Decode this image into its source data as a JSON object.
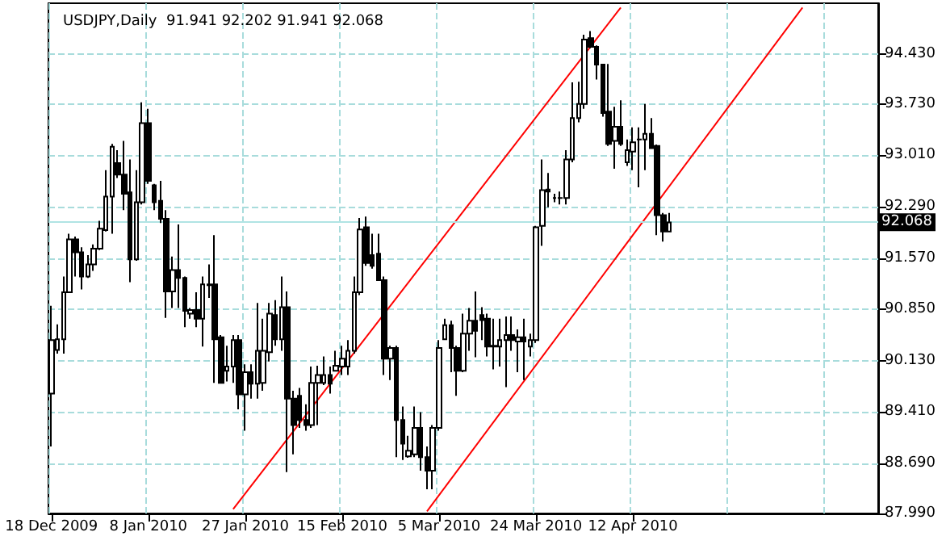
{
  "chart_data": {
    "type": "candlestick",
    "title": "USDJPY,Daily  91.941 92.202 91.941 92.068",
    "categories": [
      "18 Dec 2009",
      null,
      null,
      null,
      null,
      null,
      null,
      null,
      null,
      null,
      null,
      null,
      null,
      null,
      null,
      null,
      "8 Jan 2010",
      null,
      null,
      null,
      null,
      null,
      null,
      null,
      null,
      null,
      null,
      null,
      null,
      null,
      null,
      null,
      "27 Jan 2010",
      null,
      null,
      null,
      null,
      null,
      null,
      null,
      null,
      null,
      null,
      null,
      null,
      null,
      null,
      null,
      "15 Feb 2010",
      null,
      null,
      null,
      null,
      null,
      null,
      null,
      null,
      null,
      null,
      null,
      null,
      null,
      null,
      null,
      "5 Mar 2010",
      null,
      null,
      null,
      null,
      null,
      null,
      null,
      null,
      null,
      null,
      null,
      null,
      null,
      null,
      null,
      "24 Mar 2010",
      null,
      null,
      null,
      null,
      null,
      null,
      null,
      null,
      null,
      null,
      null,
      null,
      null,
      null,
      null,
      "12 Apr 2010",
      null,
      null,
      null,
      null,
      null,
      null,
      null,
      null,
      null,
      null,
      null,
      null,
      null,
      null,
      null,
      null,
      null,
      null,
      null,
      null,
      null,
      null,
      null,
      null,
      null,
      null,
      null,
      null,
      null,
      null,
      null,
      null,
      null,
      null,
      null,
      null,
      null,
      null,
      null,
      null
    ],
    "ohlc": [
      [
        89.67,
        90.9,
        88.93,
        90.42
      ],
      [
        90.28,
        90.64,
        90.23,
        90.43
      ],
      [
        90.43,
        91.31,
        90.23,
        91.09
      ],
      [
        91.09,
        91.91,
        91.09,
        91.83
      ],
      [
        91.83,
        91.87,
        91.31,
        91.65
      ],
      [
        91.65,
        91.72,
        91.13,
        91.31
      ],
      [
        91.31,
        91.61,
        91.29,
        91.48
      ],
      [
        91.48,
        91.76,
        91.39,
        91.7
      ],
      [
        91.7,
        92.09,
        91.68,
        91.98
      ],
      [
        91.96,
        92.8,
        91.94,
        92.43
      ],
      [
        92.43,
        93.17,
        91.91,
        93.13
      ],
      [
        92.9,
        93.08,
        92.69,
        92.74
      ],
      [
        92.74,
        93.21,
        92.24,
        92.47
      ],
      [
        92.49,
        92.95,
        91.23,
        91.55
      ],
      [
        91.55,
        92.8,
        91.53,
        92.35
      ],
      [
        92.35,
        93.75,
        92.32,
        93.46
      ],
      [
        93.46,
        93.66,
        92.61,
        92.65
      ],
      [
        92.59,
        92.61,
        92.24,
        92.35
      ],
      [
        92.37,
        92.65,
        92.06,
        92.12
      ],
      [
        92.12,
        92.24,
        90.73,
        91.1
      ],
      [
        91.1,
        91.59,
        90.87,
        91.4
      ],
      [
        91.4,
        92.04,
        90.87,
        91.29
      ],
      [
        91.29,
        91.31,
        90.6,
        90.83
      ],
      [
        90.79,
        90.87,
        90.72,
        90.84
      ],
      [
        90.84,
        91.09,
        90.6,
        90.72
      ],
      [
        90.72,
        91.31,
        90.33,
        91.2
      ],
      [
        91.2,
        91.48,
        91.01,
        91.19
      ],
      [
        91.2,
        91.89,
        89.82,
        90.43
      ],
      [
        90.46,
        90.49,
        89.81,
        89.82
      ],
      [
        89.99,
        90.34,
        89.84,
        90.05
      ],
      [
        90.05,
        90.49,
        89.82,
        90.42
      ],
      [
        90.42,
        90.49,
        89.45,
        89.66
      ],
      [
        89.66,
        90.08,
        89.15,
        89.97
      ],
      [
        89.97,
        90.08,
        89.6,
        89.81
      ],
      [
        89.81,
        90.94,
        89.6,
        90.27
      ],
      [
        89.82,
        90.72,
        89.71,
        90.27
      ],
      [
        90.25,
        90.94,
        90.12,
        90.79
      ],
      [
        90.77,
        90.98,
        90.34,
        90.43
      ],
      [
        90.43,
        91.31,
        90.27,
        90.88
      ],
      [
        90.88,
        91.1,
        88.57,
        89.6
      ],
      [
        89.6,
        89.71,
        88.82,
        89.23
      ],
      [
        89.64,
        89.75,
        89.19,
        89.3
      ],
      [
        89.3,
        89.52,
        89.15,
        89.23
      ],
      [
        89.23,
        90.05,
        89.19,
        89.82
      ],
      [
        89.82,
        90.06,
        89.23,
        89.93
      ],
      [
        89.82,
        90.19,
        89.79,
        89.93
      ],
      [
        89.93,
        90.05,
        89.67,
        89.81
      ],
      [
        89.99,
        90.27,
        89.99,
        90.06
      ],
      [
        90.05,
        90.34,
        89.93,
        90.16
      ],
      [
        90.05,
        90.42,
        89.93,
        90.27
      ],
      [
        90.27,
        91.31,
        90.23,
        91.09
      ],
      [
        91.09,
        92.13,
        91.05,
        91.97
      ],
      [
        92.0,
        92.15,
        91.46,
        91.5
      ],
      [
        91.61,
        91.91,
        91.42,
        91.46
      ],
      [
        91.63,
        91.91,
        91.25,
        91.26
      ],
      [
        91.26,
        91.31,
        89.93,
        90.16
      ],
      [
        90.16,
        90.34,
        89.86,
        90.31
      ],
      [
        90.31,
        90.34,
        88.78,
        89.3
      ],
      [
        89.3,
        89.49,
        88.74,
        88.97
      ],
      [
        88.79,
        89.08,
        88.77,
        88.87
      ],
      [
        88.82,
        89.49,
        88.78,
        89.19
      ],
      [
        89.19,
        89.41,
        88.59,
        88.78
      ],
      [
        88.78,
        88.93,
        88.33,
        88.59
      ],
      [
        88.59,
        89.23,
        88.33,
        89.19
      ],
      [
        89.19,
        90.42,
        89.15,
        90.31
      ],
      [
        90.43,
        90.72,
        90.42,
        90.63
      ],
      [
        90.63,
        90.69,
        89.97,
        90.31
      ],
      [
        90.31,
        90.34,
        89.64,
        89.99
      ],
      [
        89.99,
        90.79,
        89.97,
        90.51
      ],
      [
        90.51,
        90.87,
        90.27,
        90.69
      ],
      [
        90.69,
        91.1,
        90.18,
        90.55
      ],
      [
        90.77,
        90.88,
        90.42,
        90.7
      ],
      [
        90.72,
        90.79,
        90.19,
        90.33
      ],
      [
        90.34,
        90.72,
        90.01,
        90.33
      ],
      [
        90.33,
        90.72,
        90.05,
        90.42
      ],
      [
        90.42,
        90.75,
        89.76,
        90.49
      ],
      [
        90.49,
        90.75,
        90.27,
        90.42
      ],
      [
        90.4,
        90.57,
        89.97,
        90.46
      ],
      [
        90.46,
        90.72,
        89.86,
        90.4
      ],
      [
        90.33,
        90.51,
        90.19,
        90.42
      ],
      [
        90.42,
        92.02,
        90.38,
        92.0
      ],
      [
        92.02,
        92.95,
        91.74,
        92.52
      ],
      [
        92.53,
        92.76,
        92.28,
        92.5
      ],
      [
        92.41,
        92.47,
        92.35,
        92.41
      ],
      [
        92.41,
        92.5,
        92.32,
        92.41
      ],
      [
        92.41,
        93.08,
        92.32,
        92.95
      ],
      [
        92.95,
        94.03,
        92.91,
        93.53
      ],
      [
        93.53,
        94.04,
        93.47,
        93.73
      ],
      [
        93.73,
        94.7,
        93.66,
        94.63
      ],
      [
        94.65,
        94.75,
        94.51,
        94.53
      ],
      [
        94.53,
        94.55,
        94.07,
        94.28
      ],
      [
        94.28,
        94.29,
        93.55,
        93.6
      ],
      [
        93.62,
        94.29,
        93.14,
        93.17
      ],
      [
        93.21,
        93.69,
        92.82,
        93.41
      ],
      [
        93.41,
        93.78,
        93.14,
        93.17
      ],
      [
        92.91,
        93.23,
        92.86,
        93.08
      ],
      [
        93.06,
        93.4,
        92.8,
        93.19
      ],
      [
        93.23,
        93.4,
        92.56,
        93.23
      ],
      [
        93.23,
        93.73,
        92.8,
        93.31
      ],
      [
        93.31,
        93.53,
        93.1,
        93.11
      ],
      [
        93.14,
        93.16,
        91.89,
        92.17
      ],
      [
        92.17,
        92.2,
        91.8,
        91.94
      ],
      [
        91.941,
        92.202,
        91.941,
        92.068
      ],
      null,
      null,
      null,
      null,
      null,
      null,
      null,
      null,
      null,
      null,
      null,
      null,
      null,
      null,
      null,
      null,
      null,
      null,
      null,
      null,
      null,
      null,
      null,
      null,
      null,
      null,
      null,
      null,
      null,
      null,
      null,
      null,
      null,
      null
    ],
    "series": [
      {
        "type": "line",
        "color": "#ff0000",
        "values": [
          null,
          null,
          null,
          null,
          null,
          null,
          null,
          null,
          null,
          null,
          null,
          null,
          null,
          null,
          null,
          null,
          null,
          null,
          null,
          null,
          null,
          null,
          null,
          null,
          null,
          null,
          null,
          null,
          null,
          null,
          88.05,
          null,
          null,
          null,
          null,
          null,
          null,
          null,
          null,
          null,
          null,
          null,
          null,
          null,
          null,
          null,
          null,
          null,
          null,
          null,
          null,
          null,
          null,
          null,
          null,
          null,
          null,
          null,
          null,
          null,
          null,
          null,
          null,
          null,
          null,
          null,
          null,
          null,
          null,
          null,
          null,
          null,
          null,
          null,
          null,
          null,
          null,
          null,
          null,
          null,
          null,
          null,
          null,
          null,
          null,
          null,
          null,
          null,
          null,
          null,
          null,
          null,
          null,
          null,
          95.08,
          null,
          null,
          null,
          null,
          null,
          null,
          null,
          null,
          null,
          null,
          null,
          null,
          null,
          null,
          null,
          null,
          null,
          null,
          null,
          null,
          null,
          null,
          null,
          null,
          null,
          null,
          null,
          null,
          null,
          null,
          null,
          null,
          null,
          null,
          null,
          null,
          null,
          null,
          null,
          null,
          null,
          null
        ]
      },
      {
        "type": "line",
        "color": "#ff0000",
        "values": [
          null,
          null,
          null,
          null,
          null,
          null,
          null,
          null,
          null,
          null,
          null,
          null,
          null,
          null,
          null,
          null,
          null,
          null,
          null,
          null,
          null,
          null,
          null,
          null,
          null,
          null,
          null,
          null,
          null,
          null,
          null,
          null,
          null,
          null,
          null,
          null,
          null,
          null,
          null,
          null,
          null,
          null,
          null,
          null,
          null,
          null,
          null,
          null,
          null,
          null,
          null,
          null,
          null,
          null,
          null,
          null,
          null,
          null,
          null,
          null,
          null,
          null,
          88.02,
          null,
          null,
          null,
          null,
          null,
          null,
          null,
          null,
          null,
          null,
          null,
          null,
          null,
          null,
          null,
          null,
          null,
          null,
          null,
          null,
          null,
          null,
          null,
          null,
          null,
          null,
          null,
          null,
          null,
          null,
          null,
          null,
          null,
          null,
          null,
          null,
          null,
          null,
          null,
          null,
          null,
          null,
          null,
          null,
          null,
          null,
          null,
          null,
          null,
          null,
          null,
          null,
          null,
          null,
          null,
          null,
          null,
          null,
          null,
          null,
          null,
          95.08,
          null,
          null,
          null,
          null,
          null,
          null,
          null,
          null,
          null,
          null,
          null,
          null
        ]
      }
    ],
    "ylim": [
      87.99,
      95.14
    ],
    "yticks": [
      {
        "value": 87.99,
        "label": "87.990"
      },
      {
        "value": 88.69,
        "label": "88.690"
      },
      {
        "value": 89.41,
        "label": "89.410"
      },
      {
        "value": 90.13,
        "label": "90.130"
      },
      {
        "value": 90.85,
        "label": "90.850"
      },
      {
        "value": 91.57,
        "label": "91.570"
      },
      {
        "value": 92.29,
        "label": "92.290"
      },
      {
        "value": 93.01,
        "label": "93.010"
      },
      {
        "value": 93.73,
        "label": "93.730"
      },
      {
        "value": 94.43,
        "label": "94.430"
      }
    ],
    "ref_lines": [
      {
        "axis": "y",
        "value": 92.068,
        "label": "92.068",
        "color": "#b0e4e4"
      }
    ],
    "grid": true
  }
}
